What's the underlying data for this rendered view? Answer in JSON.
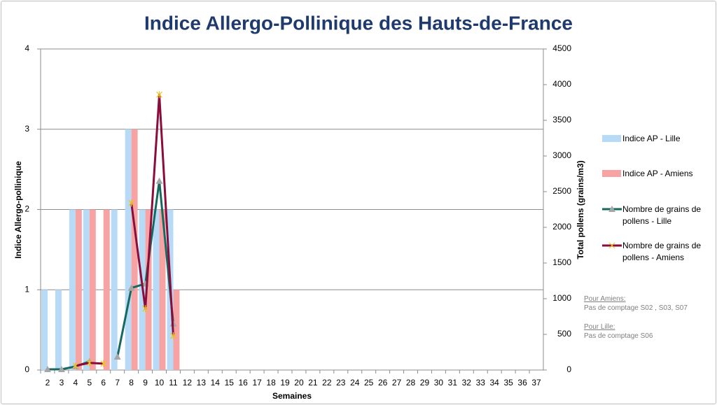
{
  "chart_data": {
    "type": "bar",
    "title": "Indice Allergo-Pollinique des Hauts-de-France",
    "x_label": "Semaines",
    "y_label": "Indice Allergo-pollinique",
    "y2_label": "Total pollens (grains/m3)",
    "categories": [
      "2",
      "3",
      "4",
      "5",
      "6",
      "7",
      "8",
      "9",
      "10",
      "11",
      "12",
      "13",
      "14",
      "15",
      "16",
      "17",
      "18",
      "19",
      "20",
      "21",
      "22",
      "23",
      "24",
      "25",
      "26",
      "27",
      "28",
      "29",
      "30",
      "31",
      "32",
      "33",
      "34",
      "35",
      "36",
      "37"
    ],
    "ylim": [
      0,
      4
    ],
    "yticks": [
      0,
      1,
      2,
      3,
      4
    ],
    "y2lim": [
      0,
      4500
    ],
    "y2ticks": [
      0,
      500,
      1000,
      1500,
      2000,
      2500,
      3000,
      3500,
      4000,
      4500
    ],
    "grid": true,
    "legend": "right",
    "series": [
      {
        "name": "Indice AP - Lille",
        "type": "bar",
        "color": "#b7dbf7",
        "values": [
          1,
          1,
          2,
          2,
          null,
          2,
          3,
          2,
          2,
          2,
          null,
          null,
          null,
          null,
          null,
          null,
          null,
          null,
          null,
          null,
          null,
          null,
          null,
          null,
          null,
          null,
          null,
          null,
          null,
          null,
          null,
          null,
          null,
          null,
          null,
          null
        ]
      },
      {
        "name": "Indice AP - Amiens",
        "type": "bar",
        "color": "#f7a3a3",
        "values": [
          null,
          null,
          2,
          2,
          2,
          null,
          3,
          2,
          2,
          1,
          null,
          null,
          null,
          null,
          null,
          null,
          null,
          null,
          null,
          null,
          null,
          null,
          null,
          null,
          null,
          null,
          null,
          null,
          null,
          null,
          null,
          null,
          null,
          null,
          null,
          null
        ]
      },
      {
        "name": "Nombre de grains de pollens - Lille",
        "type": "line",
        "axis": "y2",
        "color": "#17695f",
        "marker_color": "#a6a6a6",
        "values": [
          10,
          10,
          50,
          120,
          null,
          185,
          1150,
          1210,
          2650,
          650,
          null,
          null,
          null,
          null,
          null,
          null,
          null,
          null,
          null,
          null,
          null,
          null,
          null,
          null,
          null,
          null,
          null,
          null,
          null,
          null,
          null,
          null,
          null,
          null,
          null,
          null
        ]
      },
      {
        "name": "Nombre de grains de pollens - Amiens",
        "type": "line",
        "axis": "y2",
        "color": "#8a0d3c",
        "marker_color": "#f0c020",
        "values": [
          null,
          null,
          60,
          100,
          90,
          null,
          2340,
          860,
          3860,
          480,
          null,
          null,
          null,
          null,
          null,
          null,
          null,
          null,
          null,
          null,
          null,
          null,
          null,
          null,
          null,
          null,
          null,
          null,
          null,
          null,
          null,
          null,
          null,
          null,
          null,
          null
        ]
      }
    ],
    "notes": [
      {
        "title": "Pour Amiens:",
        "text": "Pas de comptage S02 , S03, S07"
      },
      {
        "title": "Pour Lille:",
        "text": "Pas de comptage S06"
      }
    ]
  }
}
